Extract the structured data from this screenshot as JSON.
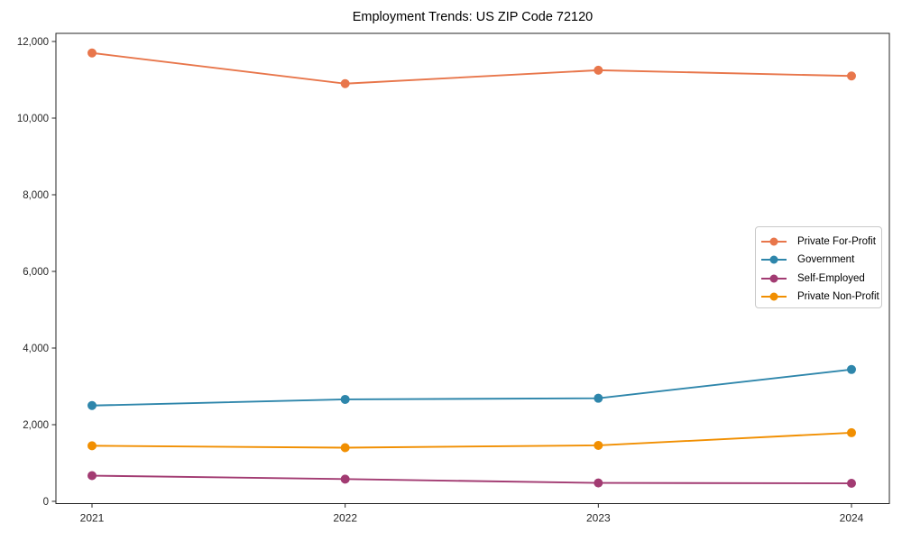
{
  "title": "Employment Trends: US ZIP Code 72120",
  "chart_data": {
    "type": "line",
    "title": "Employment Trends: US ZIP Code 72120",
    "xlabel": "",
    "ylabel": "",
    "x": [
      2021,
      2022,
      2023,
      2024
    ],
    "xtick_labels": [
      "2021",
      "2022",
      "2023",
      "2024"
    ],
    "yticks": [
      0,
      2000,
      4000,
      6000,
      8000,
      10000,
      12000
    ],
    "ytick_labels": [
      "0",
      "2,000",
      "4,000",
      "6,000",
      "8,000",
      "10,000",
      "12,000"
    ],
    "ylim": [
      0,
      12400
    ],
    "grid": false,
    "legend_position": "center right",
    "marker": "circle",
    "series": [
      {
        "name": "Private For-Profit",
        "color": "#E8764B",
        "values": [
          11700,
          10900,
          11250,
          11100
        ]
      },
      {
        "name": "Government",
        "color": "#2E86AB",
        "values": [
          2500,
          2660,
          2690,
          3440
        ]
      },
      {
        "name": "Self-Employed",
        "color": "#A23B72",
        "values": [
          670,
          580,
          480,
          470
        ]
      },
      {
        "name": "Private Non-Profit",
        "color": "#F18F01",
        "values": [
          1450,
          1400,
          1460,
          1790
        ]
      }
    ]
  }
}
